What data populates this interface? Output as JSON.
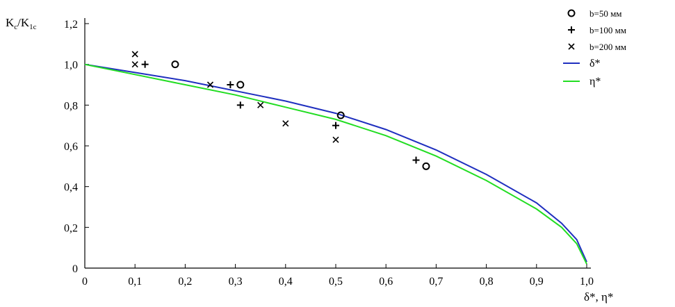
{
  "chart_data": {
    "type": "scatter",
    "ylabel": "K",
    "ylabel_sub1": "c",
    "ylabel_mid": "/K",
    "ylabel_sub2": "1c",
    "xlabel": "δ*, η*",
    "xlim": [
      0,
      1.0
    ],
    "ylim": [
      0,
      1.2
    ],
    "x_ticks": [
      0,
      0.1,
      0.2,
      0.3,
      0.4,
      0.5,
      0.6,
      0.7,
      0.8,
      0.9,
      1.0
    ],
    "x_tick_labels": [
      "0",
      "0,1",
      "0,2",
      "0,3",
      "0,4",
      "0,5",
      "0,6",
      "0,7",
      "0,8",
      "0,9",
      "1,0"
    ],
    "y_ticks": [
      0,
      0.2,
      0.4,
      0.6,
      0.8,
      1.0,
      1.2
    ],
    "y_tick_labels": [
      "0",
      "0,2",
      "0,4",
      "0,6",
      "0,8",
      "1,0",
      "1,2"
    ],
    "grid": false,
    "legend_position": "top-right",
    "series": [
      {
        "name": "b=50 мм",
        "marker": "circle",
        "color": "#000000",
        "points": [
          [
            0.18,
            1.0
          ],
          [
            0.31,
            0.9
          ],
          [
            0.51,
            0.75
          ],
          [
            0.68,
            0.5
          ]
        ]
      },
      {
        "name": "b=100 мм",
        "marker": "plus",
        "color": "#000000",
        "points": [
          [
            0.12,
            1.0
          ],
          [
            0.29,
            0.9
          ],
          [
            0.31,
            0.8
          ],
          [
            0.5,
            0.7
          ],
          [
            0.66,
            0.53
          ]
        ]
      },
      {
        "name": "b=200   мм",
        "marker": "x",
        "color": "#000000",
        "points": [
          [
            0.1,
            1.05
          ],
          [
            0.1,
            1.0
          ],
          [
            0.25,
            0.9
          ],
          [
            0.35,
            0.8
          ],
          [
            0.4,
            0.71
          ],
          [
            0.5,
            0.63
          ]
        ]
      },
      {
        "name": "δ*",
        "type": "line",
        "color": "#1f2fbf",
        "x": [
          0,
          0.1,
          0.2,
          0.3,
          0.4,
          0.5,
          0.6,
          0.7,
          0.8,
          0.9,
          0.95,
          0.98,
          1.0
        ],
        "y": [
          1.0,
          0.96,
          0.92,
          0.87,
          0.82,
          0.76,
          0.68,
          0.58,
          0.46,
          0.32,
          0.22,
          0.14,
          0.03
        ]
      },
      {
        "name": "η*",
        "type": "line",
        "color": "#22dd22",
        "x": [
          0,
          0.1,
          0.2,
          0.3,
          0.4,
          0.5,
          0.6,
          0.7,
          0.8,
          0.9,
          0.95,
          0.98,
          1.0
        ],
        "y": [
          1.0,
          0.95,
          0.9,
          0.85,
          0.79,
          0.73,
          0.65,
          0.55,
          0.43,
          0.29,
          0.2,
          0.12,
          0.02
        ]
      }
    ]
  }
}
